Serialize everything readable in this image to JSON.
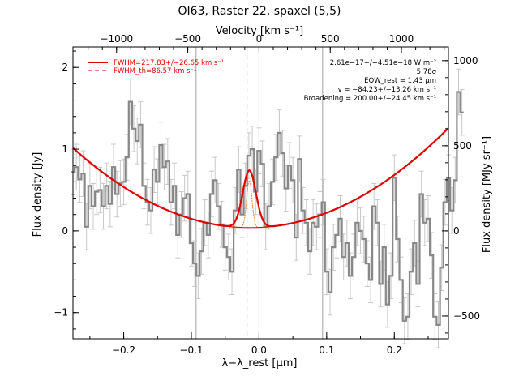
{
  "chart_data": {
    "type": "line",
    "title": "OI63, Raster 22, spaxel (5,5)",
    "xlabel": "λ−λ_rest [µm]",
    "ylabel": "Flux density [Jy]",
    "top_xlabel": "Velocity [km s⁻¹]",
    "right_ylabel": "Flux density [MJy sr⁻¹]",
    "xlim": [
      -0.275,
      0.28
    ],
    "ylim": [
      -1.32,
      2.25
    ],
    "x_ticks": [
      -0.2,
      -0.1,
      0.0,
      0.1,
      0.2
    ],
    "x_tick_labels": [
      "−0.2",
      "−0.1",
      "0.0",
      "0.1",
      "0.2"
    ],
    "y_ticks": [
      -1,
      0,
      1,
      2
    ],
    "y_tick_labels": [
      "−1",
      "0",
      "1",
      "2"
    ],
    "top_axis": {
      "ticks": [
        -1000,
        -500,
        0,
        500,
        1000
      ],
      "tick_labels": [
        "−1000",
        "−500",
        "0",
        "500",
        "1000"
      ],
      "km_s_per_um": 4750
    },
    "right_axis": {
      "ticks": [
        -500,
        0,
        500,
        1000
      ],
      "tick_labels": [
        "−500",
        "0",
        "500",
        "1000"
      ],
      "mjysr_per_jy": 480
    },
    "vertical_lines": [
      {
        "x": -0.093,
        "style": "solid"
      },
      {
        "x": 0.0,
        "style": "solid"
      },
      {
        "x": 0.094,
        "style": "solid"
      },
      {
        "x": -0.0177,
        "style": "dashed"
      }
    ],
    "legend": {
      "placement": "top-left",
      "entries": [
        {
          "label": "FWHM=217.83+/−26.65 km s⁻¹",
          "style": "solid",
          "color": "#e00000"
        },
        {
          "label": "FWHM_th=86.57 km s⁻¹",
          "style": "dashed",
          "color": "#e00000"
        }
      ]
    },
    "annotations": [
      "2.61e−17+/−4.51e−18 W m⁻²",
      "5.78σ",
      "EQW_rest = 1.43 µm",
      "v = −84.23+/−13.26 km s⁻¹",
      "Broadening = 200.00+/−24.45 km s⁻¹"
    ],
    "series": [
      {
        "style": "step",
        "color": "#888888",
        "x_start": -0.275,
        "x_step": 0.005,
        "y": [
          0.72,
          0.78,
          0.63,
          0.7,
          0.05,
          0.55,
          0.3,
          0.48,
          0.5,
          0.3,
          0.55,
          0.33,
          0.78,
          0.45,
          0.58,
          0.6,
          0.9,
          1.58,
          1.25,
          1.1,
          1.3,
          0.55,
          0.35,
          0.25,
          0.75,
          0.6,
          1.05,
          0.78,
          0.85,
          0.35,
          0.55,
          -0.05,
          0.2,
          0.4,
          0.45,
          -0.15,
          -0.4,
          -0.55,
          -0.25,
          0.1,
          -0.05,
          0.45,
          0.62,
          0.3,
          0.08,
          -0.2,
          -0.32,
          -0.5,
          0.25,
          0.75,
          0.2,
          0.55,
          0.92,
          1.0,
          0.48,
          0.98,
          0.82,
          0.05,
          0.3,
          0.6,
          0.9,
          1.2,
          0.95,
          0.52,
          0.8,
          0.62,
          -0.08,
          0.88,
          0.25,
          0.1,
          -0.25,
          0.1,
          0.05,
          0.2,
          0.35,
          -0.5,
          -0.75,
          -0.2,
          -0.05,
          0.15,
          -0.32,
          -0.15,
          -0.55,
          -0.32,
          0.1,
          0.0,
          -0.1,
          -0.4,
          -0.6,
          0.3,
          0.1,
          -0.65,
          -0.2,
          -0.9,
          -0.55,
          0.65,
          -0.1,
          -0.6,
          -1.1,
          -1.05,
          -0.5,
          -0.15,
          -0.65,
          0.45,
          0.1,
          0.15,
          -0.3,
          -1.05,
          -1.15,
          -0.45,
          0.35,
          0.65,
          0.25,
          0.62,
          1.7,
          1.45
        ]
      },
      {
        "style": "smooth",
        "color": "#e00000",
        "description_points": "baseline quadratic plus gaussian line",
        "baseline": {
          "x0": -0.013,
          "y0": 0.04,
          "c2": 14.2
        },
        "gaussian": {
          "center": -0.0143,
          "amp": 0.7,
          "sigma": 0.0098
        }
      },
      {
        "style": "smooth",
        "color": "#f08020",
        "gaussian": {
          "center": -0.0143,
          "amp": 0.58,
          "sigma": 0.0039
        },
        "base": 0.04
      }
    ]
  }
}
